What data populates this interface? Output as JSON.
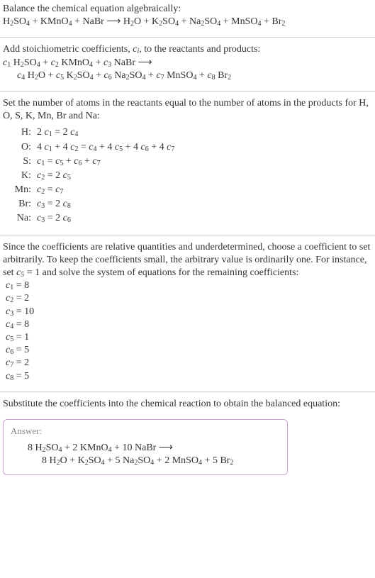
{
  "text": {
    "intro1": "Balance the chemical equation algebraically:",
    "intro2": "Add stoichiometric coefficients, ",
    "intro2_ci": "c",
    "intro2_i": "i",
    "intro2_tail": ", to the reactants and products:",
    "set_atoms": "Set the number of atoms in the reactants equal to the number of atoms in the products for H, O, S, K, Mn, Br and Na:",
    "since": "Since the coefficients are relative quantities and underdetermined, choose a coefficient to set arbitrarily. To keep the coefficients small, the arbitrary value is ordinarily one. For instance, set ",
    "since_c5": "c",
    "since_5": "5",
    "since_tail": " = 1 and solve the system of equations for the remaining coefficients:",
    "substitute": "Substitute the coefficients into the chemical reaction to obtain the balanced equation:",
    "answer_label": "Answer:"
  },
  "reaction": {
    "lhs": [
      {
        "f": "H",
        "s": "2",
        "t": "SO",
        "s2": "4"
      },
      {
        "f": "KMnO",
        "s": "4"
      },
      {
        "f": "NaBr"
      }
    ],
    "rhs": [
      {
        "f": "H",
        "s": "2",
        "t": "O"
      },
      {
        "f": "K",
        "s": "2",
        "t": "SO",
        "s2": "4"
      },
      {
        "f": "Na",
        "s": "2",
        "t": "SO",
        "s2": "4"
      },
      {
        "f": "MnSO",
        "s": "4"
      },
      {
        "f": "Br",
        "s": "2"
      }
    ]
  },
  "coeff_reaction": {
    "line1": [
      {
        "c": "1",
        "sp": "H",
        "s": "2",
        "t": "SO",
        "s2": "4"
      },
      {
        "c": "2",
        "sp": "KMnO",
        "s": "4"
      },
      {
        "c": "3",
        "sp": "NaBr"
      }
    ],
    "line2": [
      {
        "c": "4",
        "sp": "H",
        "s": "2",
        "t": "O"
      },
      {
        "c": "5",
        "sp": "K",
        "s": "2",
        "t": "SO",
        "s2": "4"
      },
      {
        "c": "6",
        "sp": "Na",
        "s": "2",
        "t": "SO",
        "s2": "4"
      },
      {
        "c": "7",
        "sp": "MnSO",
        "s": "4"
      },
      {
        "c": "8",
        "sp": "Br",
        "s": "2"
      }
    ]
  },
  "atoms": [
    {
      "el": "H:",
      "eq": {
        "lhs": [
          {
            "k": "2",
            "c": "1"
          }
        ],
        "rhs": [
          {
            "k": "2",
            "c": "4"
          }
        ]
      }
    },
    {
      "el": "O:",
      "eq": {
        "lhs": [
          {
            "k": "4",
            "c": "1"
          },
          {
            "k": "4",
            "c": "2"
          }
        ],
        "rhs": [
          {
            "c": "4"
          },
          {
            "k": "4",
            "c": "5"
          },
          {
            "k": "4",
            "c": "6"
          },
          {
            "k": "4",
            "c": "7"
          }
        ]
      }
    },
    {
      "el": "S:",
      "eq": {
        "lhs": [
          {
            "c": "1"
          }
        ],
        "rhs": [
          {
            "c": "5"
          },
          {
            "c": "6"
          },
          {
            "c": "7"
          }
        ]
      }
    },
    {
      "el": "K:",
      "eq": {
        "lhs": [
          {
            "c": "2"
          }
        ],
        "rhs": [
          {
            "k": "2",
            "c": "5"
          }
        ]
      }
    },
    {
      "el": "Mn:",
      "eq": {
        "lhs": [
          {
            "c": "2"
          }
        ],
        "rhs": [
          {
            "c": "7"
          }
        ]
      }
    },
    {
      "el": "Br:",
      "eq": {
        "lhs": [
          {
            "c": "3"
          }
        ],
        "rhs": [
          {
            "k": "2",
            "c": "8"
          }
        ]
      }
    },
    {
      "el": "Na:",
      "eq": {
        "lhs": [
          {
            "c": "3"
          }
        ],
        "rhs": [
          {
            "k": "2",
            "c": "6"
          }
        ]
      }
    }
  ],
  "solved": [
    {
      "c": "1",
      "v": "8"
    },
    {
      "c": "2",
      "v": "2"
    },
    {
      "c": "3",
      "v": "10"
    },
    {
      "c": "4",
      "v": "8"
    },
    {
      "c": "5",
      "v": "1"
    },
    {
      "c": "6",
      "v": "5"
    },
    {
      "c": "7",
      "v": "2"
    },
    {
      "c": "8",
      "v": "5"
    }
  ],
  "balanced": {
    "line1": [
      {
        "k": "8",
        "f": "H",
        "s": "2",
        "t": "SO",
        "s2": "4"
      },
      {
        "k": "2",
        "f": "KMnO",
        "s": "4"
      },
      {
        "k": "10",
        "f": "NaBr"
      }
    ],
    "line2": [
      {
        "k": "8",
        "f": "H",
        "s": "2",
        "t": "O"
      },
      {
        "k": "",
        "f": "K",
        "s": "2",
        "t": "SO",
        "s2": "4"
      },
      {
        "k": "5",
        "f": "Na",
        "s": "2",
        "t": "SO",
        "s2": "4"
      },
      {
        "k": "2",
        "f": "MnSO",
        "s": "4"
      },
      {
        "k": "5",
        "f": "Br",
        "s": "2"
      }
    ]
  },
  "style": {
    "hr_color": "#cccccc",
    "answer_border": "#cfa0d8",
    "body_fontsize": 14,
    "sub_fontsize": 10,
    "serif": "Georgia, 'Times New Roman', serif"
  }
}
